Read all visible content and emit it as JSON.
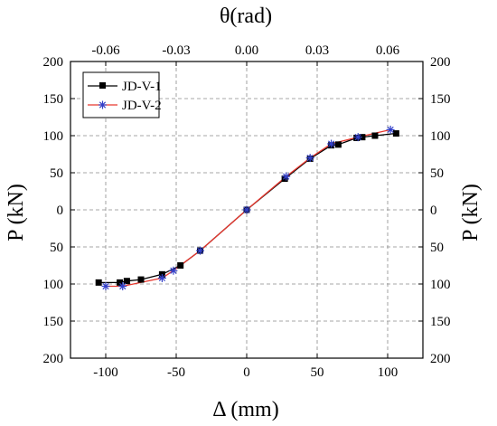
{
  "chart_data": {
    "type": "line",
    "x_title": "Δ (mm)",
    "y_title_left": "P (kN)",
    "y_title_right": "P (kN)",
    "top_title": "θ(rad)",
    "xlim": [
      -125,
      125
    ],
    "ylim": [
      -200,
      200
    ],
    "x_ticks": [
      -100,
      -50,
      0,
      50,
      100
    ],
    "y_ticks": [
      -200,
      -150,
      -100,
      -50,
      0,
      50,
      100,
      150,
      200
    ],
    "y_tick_labels": [
      "200",
      "150",
      "100",
      "50",
      "0",
      "50",
      "100",
      "150",
      "200"
    ],
    "top_ticks": [
      {
        "x": -100,
        "label": "-0.06"
      },
      {
        "x": -50,
        "label": "-0.03"
      },
      {
        "x": 0,
        "label": "0.00"
      },
      {
        "x": 50,
        "label": "0.03"
      },
      {
        "x": 100,
        "label": "0.06"
      }
    ],
    "grid": true,
    "legend_position": "top-left",
    "series": [
      {
        "name": "JD-V-1",
        "color": "#000000",
        "marker": "square",
        "points": [
          [
            -105,
            -98
          ],
          [
            -90,
            -98
          ],
          [
            -85,
            -96
          ],
          [
            -75,
            -94
          ],
          [
            -60,
            -87
          ],
          [
            -47,
            -75
          ],
          [
            -33,
            -55
          ],
          [
            0,
            0
          ],
          [
            27,
            42
          ],
          [
            45,
            69
          ],
          [
            60,
            87
          ],
          [
            65,
            88
          ],
          [
            78,
            97
          ],
          [
            82,
            98
          ],
          [
            91,
            100
          ],
          [
            106,
            103
          ]
        ]
      },
      {
        "name": "JD-V-2",
        "color": "#e8372e",
        "marker": "star",
        "points": [
          [
            -100,
            -103
          ],
          [
            -88,
            -103
          ],
          [
            -60,
            -92
          ],
          [
            -52,
            -82
          ],
          [
            -33,
            -55
          ],
          [
            0,
            0
          ],
          [
            28,
            45
          ],
          [
            45,
            70
          ],
          [
            60,
            89
          ],
          [
            79,
            98
          ],
          [
            102,
            108
          ]
        ]
      }
    ]
  }
}
